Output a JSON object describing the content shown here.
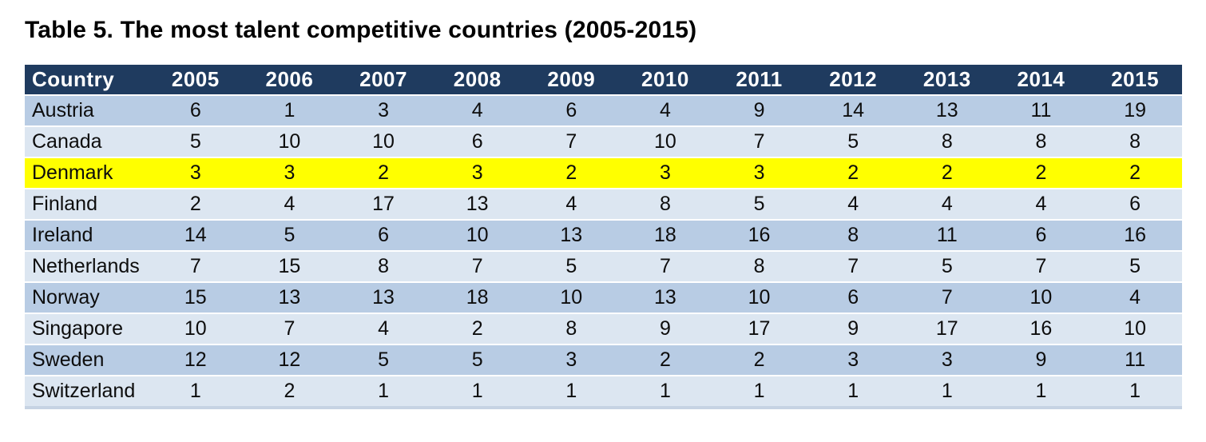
{
  "page": {
    "title": "Table 5. The most talent competitive countries (2005-2015)"
  },
  "table": {
    "columns": [
      "Country",
      "2005",
      "2006",
      "2007",
      "2008",
      "2009",
      "2010",
      "2011",
      "2012",
      "2013",
      "2014",
      "2015"
    ],
    "rows": [
      {
        "country": "Austria",
        "values": [
          6,
          1,
          3,
          4,
          6,
          4,
          9,
          14,
          13,
          11,
          19
        ],
        "highlight": false
      },
      {
        "country": "Canada",
        "values": [
          5,
          10,
          10,
          6,
          7,
          10,
          7,
          5,
          8,
          8,
          8
        ],
        "highlight": false
      },
      {
        "country": "Denmark",
        "values": [
          3,
          3,
          2,
          3,
          2,
          3,
          3,
          2,
          2,
          2,
          2
        ],
        "highlight": true
      },
      {
        "country": "Finland",
        "values": [
          2,
          4,
          17,
          13,
          4,
          8,
          5,
          4,
          4,
          4,
          6
        ],
        "highlight": false
      },
      {
        "country": "Ireland",
        "values": [
          14,
          5,
          6,
          10,
          13,
          18,
          16,
          8,
          11,
          6,
          16
        ],
        "highlight": false
      },
      {
        "country": "Netherlands",
        "values": [
          7,
          15,
          8,
          7,
          5,
          7,
          8,
          7,
          5,
          7,
          5
        ],
        "highlight": false
      },
      {
        "country": "Norway",
        "values": [
          15,
          13,
          13,
          18,
          10,
          13,
          10,
          6,
          7,
          10,
          4
        ],
        "highlight": false
      },
      {
        "country": "Singapore",
        "values": [
          10,
          7,
          4,
          2,
          8,
          9,
          17,
          9,
          17,
          16,
          10
        ],
        "highlight": false
      },
      {
        "country": "Sweden",
        "values": [
          12,
          12,
          5,
          5,
          3,
          2,
          2,
          3,
          3,
          9,
          11
        ],
        "highlight": false
      },
      {
        "country": "Switzerland",
        "values": [
          1,
          2,
          1,
          1,
          1,
          1,
          1,
          1,
          1,
          1,
          1
        ],
        "highlight": false
      }
    ],
    "colors": {
      "header_bg": "#1F3B5F",
      "header_text": "#FFFFFF",
      "row_odd_bg": "#B8CCE4",
      "row_even_bg": "#DCE6F1",
      "highlight_bg": "#FFFF00",
      "bottom_border": "#C6D3E3"
    }
  },
  "chart_data": {
    "type": "table",
    "title": "Table 5. The most talent competitive countries (2005-2015)",
    "categories": [
      "2005",
      "2006",
      "2007",
      "2008",
      "2009",
      "2010",
      "2011",
      "2012",
      "2013",
      "2014",
      "2015"
    ],
    "series": [
      {
        "name": "Austria",
        "values": [
          6,
          1,
          3,
          4,
          6,
          4,
          9,
          14,
          13,
          11,
          19
        ]
      },
      {
        "name": "Canada",
        "values": [
          5,
          10,
          10,
          6,
          7,
          10,
          7,
          5,
          8,
          8,
          8
        ]
      },
      {
        "name": "Denmark",
        "values": [
          3,
          3,
          2,
          3,
          2,
          3,
          3,
          2,
          2,
          2,
          2
        ]
      },
      {
        "name": "Finland",
        "values": [
          2,
          4,
          17,
          13,
          4,
          8,
          5,
          4,
          4,
          4,
          6
        ]
      },
      {
        "name": "Ireland",
        "values": [
          14,
          5,
          6,
          10,
          13,
          18,
          16,
          8,
          11,
          6,
          16
        ]
      },
      {
        "name": "Netherlands",
        "values": [
          7,
          15,
          8,
          7,
          5,
          7,
          8,
          7,
          5,
          7,
          5
        ]
      },
      {
        "name": "Norway",
        "values": [
          15,
          13,
          13,
          18,
          10,
          13,
          10,
          6,
          7,
          10,
          4
        ]
      },
      {
        "name": "Singapore",
        "values": [
          10,
          7,
          4,
          2,
          8,
          9,
          17,
          9,
          17,
          16,
          10
        ]
      },
      {
        "name": "Sweden",
        "values": [
          12,
          12,
          5,
          5,
          3,
          2,
          2,
          3,
          3,
          9,
          11
        ]
      },
      {
        "name": "Switzerland",
        "values": [
          1,
          2,
          1,
          1,
          1,
          1,
          1,
          1,
          1,
          1,
          1
        ]
      }
    ],
    "highlighted_row": "Denmark",
    "legend_position": "none",
    "grid": false
  }
}
